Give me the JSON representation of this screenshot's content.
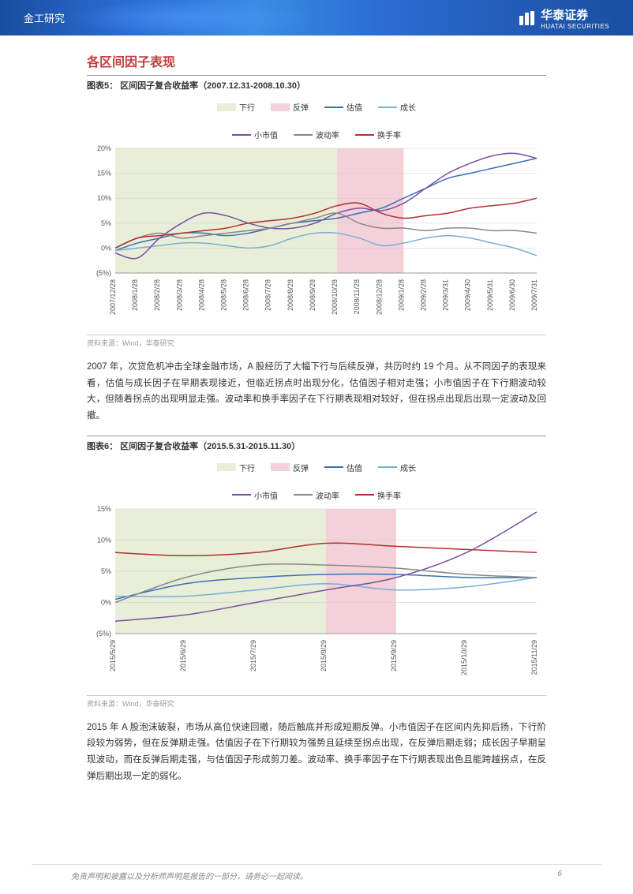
{
  "header": {
    "category": "金工研究",
    "company_cn": "华泰证券",
    "company_en": "HUATAI SECURITIES"
  },
  "section_title": "各区间因子表现",
  "chart5": {
    "title": "图表5：  区间因子复合收益率（2007.12.31-2008.10.30）",
    "type": "line",
    "legend": {
      "down_label": "下行",
      "down_color": "#e8eed8",
      "rebound_label": "反弹",
      "rebound_color": "#f4d0d8",
      "value_label": "估值",
      "value_color": "#3a6fb5",
      "growth_label": "成长",
      "growth_color": "#7aaed4",
      "smallcap_label": "小市值",
      "smallcap_color": "#7a4fa0",
      "vol_label": "波动率",
      "vol_color": "#888888",
      "turnover_label": "换手率",
      "turnover_color": "#b03030"
    },
    "x_labels": [
      "2007/12/28",
      "2008/1/28",
      "2008/2/28",
      "2008/3/28",
      "2008/4/28",
      "2008/5/28",
      "2008/6/28",
      "2008/7/28",
      "2008/8/28",
      "2008/9/28",
      "2008/10/28",
      "2008/11/28",
      "2008/12/28",
      "2009/1/28",
      "2009/2/28",
      "2009/3/31",
      "2009/4/30",
      "2009/5/31",
      "2009/6/30",
      "2009/7/31"
    ],
    "y_labels": [
      "(5%)",
      "0%",
      "5%",
      "10%",
      "15%",
      "20%"
    ],
    "ylim": [
      -5,
      20
    ],
    "down_region": [
      0,
      10
    ],
    "rebound_region": [
      10,
      13
    ],
    "series": {
      "value": [
        -0.5,
        1,
        2,
        3,
        3,
        2.5,
        3,
        4,
        5,
        5.5,
        6,
        7,
        8,
        10,
        12,
        14,
        15,
        16,
        17,
        18
      ],
      "growth": [
        -0.5,
        0,
        0.5,
        1,
        1,
        0.5,
        0,
        0.5,
        2,
        3,
        3,
        2,
        0.5,
        1,
        2,
        2.5,
        2,
        1,
        0,
        -1.5
      ],
      "smallcap": [
        -1,
        -2,
        2,
        5,
        7,
        6.5,
        5,
        4,
        4,
        5,
        7,
        8,
        7.5,
        9,
        12,
        15,
        17,
        18.5,
        19,
        18
      ],
      "vol": [
        0,
        2,
        3,
        2,
        2.5,
        3,
        3.5,
        4,
        5,
        6,
        7,
        5,
        4,
        4,
        3.5,
        4,
        4,
        3.5,
        3.5,
        3
      ],
      "turnover": [
        0,
        2,
        2.5,
        3,
        3.5,
        4,
        5,
        5.5,
        6,
        7,
        8.5,
        9,
        7,
        6,
        6.5,
        7,
        8,
        8.5,
        9,
        10
      ]
    },
    "source": "资料来源：Wind，华泰研究",
    "background_color": "#ffffff",
    "grid_color": "#cccccc",
    "line_width": 1.5,
    "label_fontsize": 9
  },
  "para1": "2007 年，次贷危机冲击全球金融市场，A 股经历了大幅下行与后续反弹，共历时约 19 个月。从不同因子的表现来看，估值与成长因子在早期表现接近，但临近拐点时出现分化，估值因子相对走强；小市值因子在下行期波动较大，但随着拐点的出现明显走强。波动率和换手率因子在下行期表现相对较好，但在拐点出现后出现一定波动及回撤。",
  "chart6": {
    "title": "图表6：  区间因子复合收益率（2015.5.31-2015.11.30）",
    "type": "line",
    "legend": {
      "down_label": "下行",
      "down_color": "#e8eed8",
      "rebound_label": "反弹",
      "rebound_color": "#f4d0d8",
      "value_label": "估值",
      "value_color": "#3a6fb5",
      "growth_label": "成长",
      "growth_color": "#7aaed4",
      "smallcap_label": "小市值",
      "smallcap_color": "#7a4fa0",
      "vol_label": "波动率",
      "vol_color": "#888888",
      "turnover_label": "换手率",
      "turnover_color": "#b03030"
    },
    "x_labels": [
      "2015/5/29",
      "2015/6/29",
      "2015/7/29",
      "2015/8/29",
      "2015/9/29",
      "2015/10/29",
      "2015/11/29"
    ],
    "y_labels": [
      "(5%)",
      "0%",
      "5%",
      "10%",
      "15%"
    ],
    "ylim": [
      -5,
      15
    ],
    "down_region": [
      0,
      3
    ],
    "rebound_region": [
      3,
      4
    ],
    "series": {
      "value": [
        0.5,
        3,
        4,
        4.5,
        4.5,
        4,
        4
      ],
      "growth": [
        1,
        1,
        2,
        3,
        2,
        2.5,
        4
      ],
      "smallcap": [
        -3,
        -2,
        0,
        2,
        4,
        8,
        14.5
      ],
      "vol": [
        0,
        4,
        6,
        6,
        5.5,
        4.5,
        4
      ],
      "turnover": [
        8,
        7.5,
        8,
        9.5,
        9,
        8.5,
        8
      ]
    },
    "source": "资料来源：Wind，华泰研究",
    "background_color": "#ffffff",
    "grid_color": "#cccccc",
    "line_width": 1.5,
    "label_fontsize": 9
  },
  "para2": "2015 年 A 股泡沫破裂，市场从高位快速回撤，随后触底并形成短期反弹。小市值因子在区间内先抑后扬，下行阶段较为弱势，但在反弹期走强。估值因子在下行期较为强势且延续至拐点出现，在反弹后期走弱；成长因子早期呈现波动，而在反弹后期走强，与估值因子形成剪刀差。波动率、换手率因子在下行期表现出色且能跨越拐点，在反弹后期出现一定的弱化。",
  "footer": {
    "disclaimer": "免责声明和披露以及分析师声明是报告的一部分，请务必一起阅读。",
    "page": "6"
  }
}
